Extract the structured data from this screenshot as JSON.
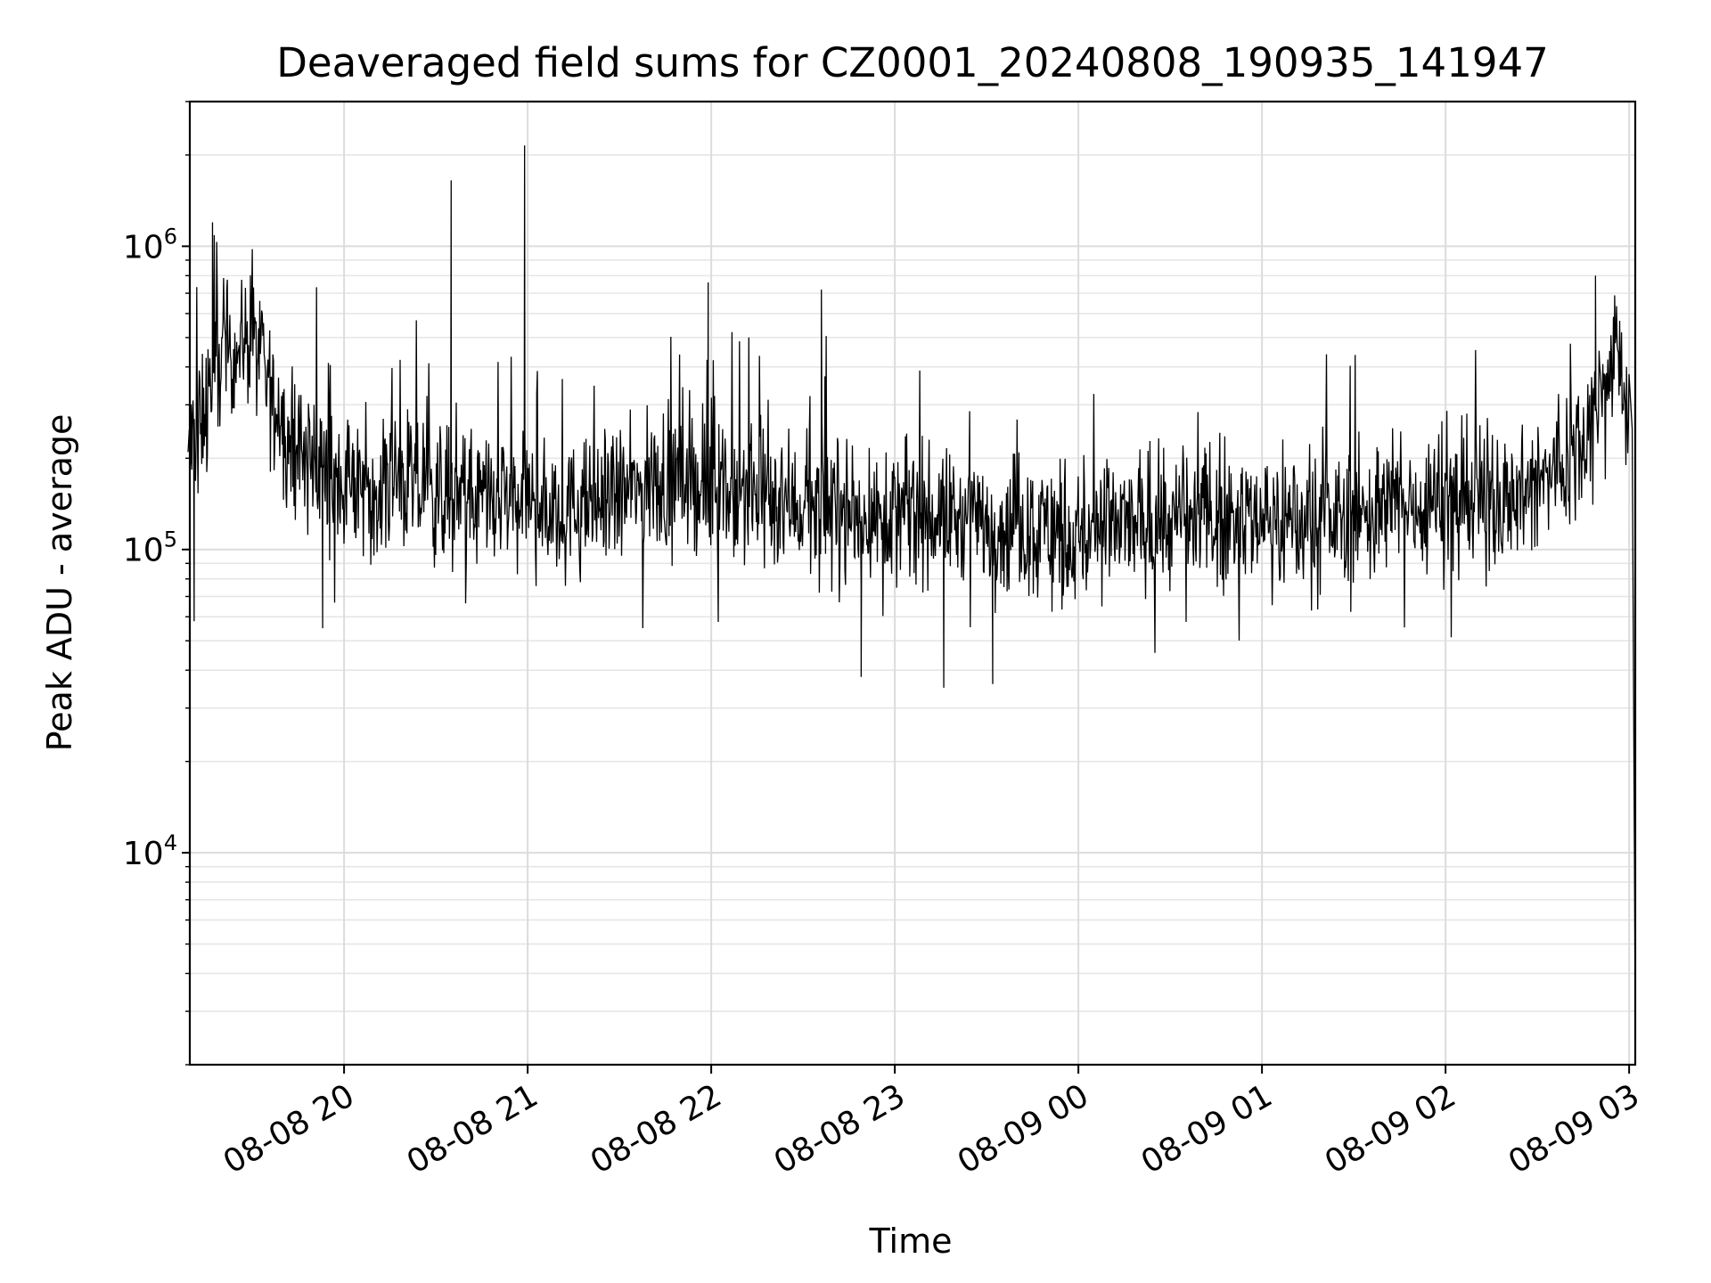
{
  "chart_data": {
    "type": "line",
    "title": "Deaveraged field sums for CZ0001_20240808_190935_141947",
    "xlabel": "Time",
    "ylabel": "Peak ADU - average",
    "yscale": "log",
    "ylim": [
      2000,
      3000000
    ],
    "xlim": [
      "2024-08-08 19:09:35",
      "2024-08-09 03:02:00"
    ],
    "grid": true,
    "legend": "none",
    "x_ticks": [
      {
        "value": "2024-08-08 20:00",
        "label": "08-08 20"
      },
      {
        "value": "2024-08-08 21:00",
        "label": "08-08 21"
      },
      {
        "value": "2024-08-08 22:00",
        "label": "08-08 22"
      },
      {
        "value": "2024-08-08 23:00",
        "label": "08-08 23"
      },
      {
        "value": "2024-08-09 00:00",
        "label": "08-09 00"
      },
      {
        "value": "2024-08-09 01:00",
        "label": "08-09 01"
      },
      {
        "value": "2024-08-09 02:00",
        "label": "08-09 02"
      },
      {
        "value": "2024-08-09 03:00",
        "label": "08-09 03"
      }
    ],
    "y_ticks": [
      {
        "value": 10000,
        "base": "10",
        "exp": "4"
      },
      {
        "value": 100000,
        "base": "10",
        "exp": "5"
      },
      {
        "value": 1000000,
        "base": "10",
        "exp": "6"
      }
    ],
    "series": [
      {
        "color": "#000000",
        "x": [
          "2024-08-08 19:09",
          "2024-08-08 19:20",
          "2024-08-08 19:30",
          "2024-08-08 19:40",
          "2024-08-08 19:50",
          "2024-08-08 20:00",
          "2024-08-08 20:15",
          "2024-08-08 20:30",
          "2024-08-08 20:36",
          "2024-08-08 20:45",
          "2024-08-08 20:59",
          "2024-08-08 21:10",
          "2024-08-08 21:30",
          "2024-08-08 21:45",
          "2024-08-08 22:00",
          "2024-08-08 22:15",
          "2024-08-08 22:30",
          "2024-08-08 22:45",
          "2024-08-08 23:00",
          "2024-08-08 23:15",
          "2024-08-08 23:30",
          "2024-08-08 23:45",
          "2024-08-09 00:00",
          "2024-08-09 00:15",
          "2024-08-09 00:30",
          "2024-08-09 00:45",
          "2024-08-09 01:00",
          "2024-08-09 01:15",
          "2024-08-09 01:30",
          "2024-08-09 01:45",
          "2024-08-09 02:00",
          "2024-08-09 02:15",
          "2024-08-09 02:30",
          "2024-08-09 02:40",
          "2024-08-09 02:50",
          "2024-08-09 02:56",
          "2024-08-09 03:00",
          "2024-08-09 03:01",
          "2024-08-09 03:02"
        ],
        "y": [
          200000,
          450000,
          500000,
          250000,
          200000,
          160000,
          170000,
          150000,
          160000,
          140000,
          150000,
          130000,
          150000,
          170000,
          160000,
          150000,
          140000,
          130000,
          130000,
          130000,
          120000,
          120000,
          110000,
          120000,
          120000,
          130000,
          130000,
          120000,
          130000,
          140000,
          150000,
          150000,
          160000,
          200000,
          320000,
          450000,
          300000,
          250000,
          3000
        ],
        "peaks": [
          {
            "x": "2024-08-08 19:17",
            "y": 1200000
          },
          {
            "x": "2024-08-08 20:35",
            "y": 1650000
          },
          {
            "x": "2024-08-08 20:59",
            "y": 2150000
          },
          {
            "x": "2024-08-08 21:59",
            "y": 760000
          },
          {
            "x": "2024-08-08 22:36",
            "y": 720000
          },
          {
            "x": "2024-08-09 02:49",
            "y": 800000
          }
        ],
        "troughs": [
          {
            "x": "2024-08-08 19:11",
            "y": 58000
          },
          {
            "x": "2024-08-08 19:53",
            "y": 55000
          },
          {
            "x": "2024-08-08 22:49",
            "y": 38000
          },
          {
            "x": "2024-08-08 23:16",
            "y": 35000
          },
          {
            "x": "2024-08-08 23:32",
            "y": 36000
          }
        ]
      }
    ]
  }
}
